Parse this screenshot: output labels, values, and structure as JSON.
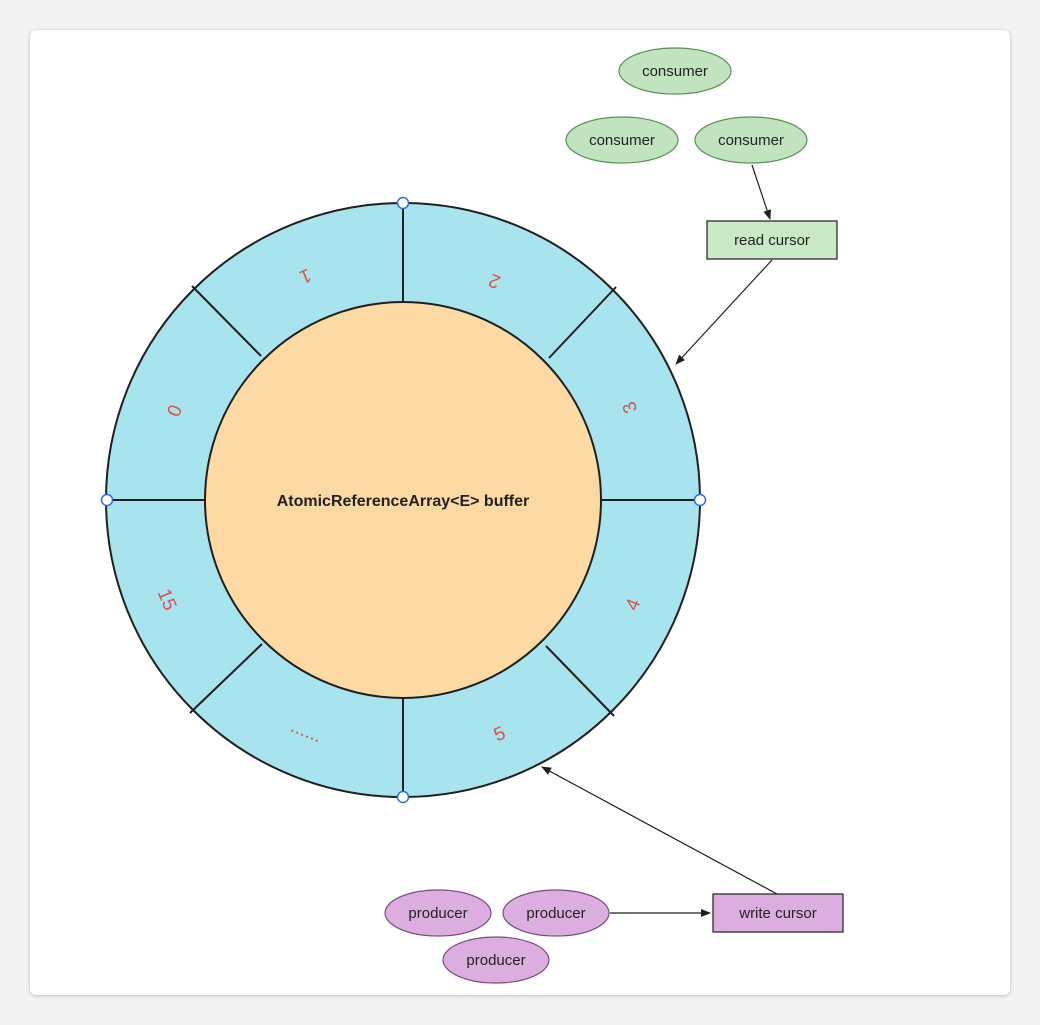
{
  "diagram": {
    "center_label": "AtomicReferenceArray<E> buffer",
    "segments": [
      "0",
      "1",
      "2",
      "3",
      "4",
      "5",
      "......",
      "15"
    ],
    "consumers": [
      "consumer",
      "consumer",
      "consumer"
    ],
    "producers": [
      "producer",
      "producer",
      "producer"
    ],
    "read_cursor": "read cursor",
    "write_cursor": "write cursor"
  },
  "colors": {
    "ring_fill": "#a8e4ee",
    "core_fill": "#fdd9a3",
    "segment_text": "#d9534f",
    "consumer_fill": "#c2e3c0",
    "consumer_stroke": "#5b8f5b",
    "read_cursor_fill": "#c9e8c6",
    "producer_fill": "#dcaee0",
    "producer_stroke": "#7a4d82",
    "write_cursor_fill": "#dcaee0",
    "stroke": "#1f1f1f",
    "handle_stroke": "#2a6fdb"
  }
}
